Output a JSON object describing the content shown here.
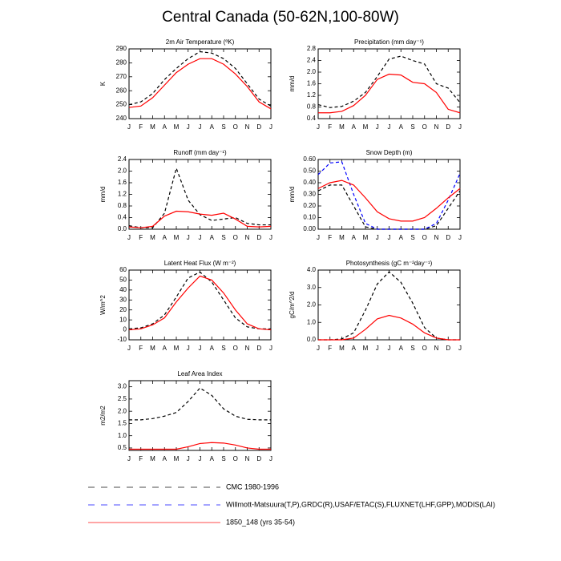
{
  "title": "Central Canada (50-62N,100-80W)",
  "legend": [
    {
      "name": "CMC 1980-1996",
      "color": "#000000",
      "dash": "8,8"
    },
    {
      "name": "Willmott-Matsuura(T,P),GRDC(R),USAF/ETAC(S),FLUXNET(LHF,GPP),MODIS(LAI)",
      "color": "#0000ff",
      "dash": "8,8"
    },
    {
      "name": "1850_148 (yrs 35-54)",
      "color": "#ff0000",
      "dash": "none"
    }
  ],
  "chart_data": [
    {
      "type": "line",
      "title": "2m Air Temperature (ºK)",
      "ylabel": "K",
      "categories": [
        "J",
        "F",
        "M",
        "A",
        "M",
        "J",
        "J",
        "A",
        "S",
        "O",
        "N",
        "D",
        "J"
      ],
      "ylim": [
        240,
        290
      ],
      "yticks": [
        240,
        250,
        260,
        270,
        280,
        290
      ],
      "series": [
        {
          "name": "CMC 1980-1996",
          "color": "#000000",
          "dash": "4,3",
          "values": [
            250,
            252,
            258,
            268,
            276,
            283,
            288,
            287,
            283,
            276,
            265,
            254,
            249
          ]
        },
        {
          "name": "1850_148 (yrs 35-54)",
          "color": "#ff0000",
          "dash": "none",
          "values": [
            248,
            249,
            255,
            264,
            273,
            279,
            283,
            283,
            279,
            272,
            263,
            252,
            247
          ]
        }
      ]
    },
    {
      "type": "line",
      "title": "Precipitation (mm day⁻¹)",
      "ylabel": "mm/d",
      "categories": [
        "J",
        "F",
        "M",
        "A",
        "M",
        "J",
        "J",
        "A",
        "S",
        "O",
        "N",
        "D",
        "J"
      ],
      "ylim": [
        0.4,
        2.8
      ],
      "yticks": [
        0.4,
        0.8,
        1.2,
        1.6,
        {
          "value": 2,
          "label": "2.0"
        },
        2.4,
        2.8
      ],
      "series": [
        {
          "name": "CMC 1980-1996",
          "color": "#000000",
          "dash": "4,3",
          "values": [
            0.88,
            0.78,
            0.82,
            1.0,
            1.3,
            1.85,
            2.45,
            2.55,
            2.4,
            2.28,
            1.6,
            1.45,
            0.95
          ]
        },
        {
          "name": "1850_148 (yrs 35-54)",
          "color": "#ff0000",
          "dash": "none",
          "values": [
            0.6,
            0.6,
            0.65,
            0.85,
            1.2,
            1.75,
            1.93,
            1.9,
            1.65,
            1.6,
            1.3,
            0.72,
            0.6
          ]
        }
      ]
    },
    {
      "type": "line",
      "title": "Runoff (mm day⁻¹)",
      "ylabel": "mm/d",
      "categories": [
        "J",
        "F",
        "M",
        "A",
        "M",
        "J",
        "J",
        "A",
        "S",
        "O",
        "N",
        "D",
        "J"
      ],
      "ylim": [
        0,
        2.4
      ],
      "yticks": [
        {
          "value": 0,
          "label": "0.0"
        },
        0.4,
        0.8,
        1.2,
        1.6,
        {
          "value": 2,
          "label": "2.0"
        },
        2.4
      ],
      "series": [
        {
          "name": "CMC 1980-1996",
          "color": "#000000",
          "dash": "4,3",
          "values": [
            0.12,
            0.05,
            0.05,
            0.55,
            2.1,
            1.0,
            0.5,
            0.3,
            0.35,
            0.4,
            0.2,
            0.15,
            0.15
          ]
        },
        {
          "name": "1850_148 (yrs 35-54)",
          "color": "#ff0000",
          "dash": "none",
          "values": [
            0.08,
            0.05,
            0.1,
            0.45,
            0.62,
            0.6,
            0.52,
            0.48,
            0.55,
            0.35,
            0.1,
            0.08,
            0.1
          ]
        }
      ]
    },
    {
      "type": "line",
      "title": "Snow Depth (m)",
      "ylabel": "mm/d",
      "categories": [
        "J",
        "F",
        "M",
        "A",
        "M",
        "J",
        "J",
        "A",
        "S",
        "O",
        "N",
        "D",
        "J"
      ],
      "ylim": [
        0,
        0.6
      ],
      "yticks": [
        {
          "value": 0,
          "label": "0.00"
        },
        {
          "value": 0.1,
          "label": "0.10"
        },
        {
          "value": 0.2,
          "label": "0.20"
        },
        {
          "value": 0.3,
          "label": "0.30"
        },
        {
          "value": 0.4,
          "label": "0.40"
        },
        {
          "value": 0.5,
          "label": "0.50"
        },
        {
          "value": 0.6,
          "label": "0.60"
        }
      ],
      "series": [
        {
          "name": "CMC 1980-1996",
          "color": "#000000",
          "dash": "4,3",
          "values": [
            0.33,
            0.38,
            0.38,
            0.2,
            0.02,
            0,
            0,
            0,
            0,
            0,
            0.03,
            0.18,
            0.33
          ]
        },
        {
          "name": "Willmott-Matsuura(T,P),GRDC(R),USAF/ETAC(S),FLUXNET(LHF,GPP),MODIS(LAI)",
          "color": "#0000ff",
          "dash": "4,3",
          "values": [
            0.47,
            0.57,
            0.58,
            0.3,
            0.05,
            0,
            0,
            0,
            0,
            0,
            0.05,
            0.25,
            0.48
          ]
        },
        {
          "name": "1850_148 (yrs 35-54)",
          "color": "#ff0000",
          "dash": "none",
          "values": [
            0.35,
            0.4,
            0.42,
            0.38,
            0.27,
            0.15,
            0.09,
            0.07,
            0.07,
            0.1,
            0.18,
            0.27,
            0.35
          ]
        }
      ]
    },
    {
      "type": "line",
      "title": "Latent Heat Flux (W m⁻²)",
      "ylabel": "W/m^2",
      "categories": [
        "J",
        "F",
        "M",
        "A",
        "M",
        "J",
        "J",
        "A",
        "S",
        "O",
        "N",
        "D",
        "J"
      ],
      "ylim": [
        -10,
        60
      ],
      "yticks": [
        -10,
        0,
        10,
        20,
        30,
        40,
        50,
        60
      ],
      "series": [
        {
          "name": "CMC 1980-1996",
          "color": "#000000",
          "dash": "4,3",
          "values": [
            1,
            2,
            6,
            15,
            33,
            52,
            58,
            48,
            30,
            12,
            3,
            1,
            1
          ]
        },
        {
          "name": "1850_148 (yrs 35-54)",
          "color": "#ff0000",
          "dash": "none",
          "values": [
            0,
            1,
            5,
            12,
            28,
            42,
            54,
            50,
            37,
            20,
            6,
            1,
            0
          ]
        }
      ]
    },
    {
      "type": "line",
      "title": "Photosynthesis (gC m⁻²day⁻¹)",
      "ylabel": "gC/m^2/d",
      "categories": [
        "J",
        "F",
        "M",
        "A",
        "M",
        "J",
        "J",
        "A",
        "S",
        "O",
        "N",
        "D",
        "J"
      ],
      "ylim": [
        0,
        4
      ],
      "yticks": [
        {
          "value": 0,
          "label": "0.0"
        },
        {
          "value": 1,
          "label": "1.0"
        },
        {
          "value": 2,
          "label": "2.0"
        },
        {
          "value": 3,
          "label": "3.0"
        },
        {
          "value": 4,
          "label": "4.0"
        }
      ],
      "series": [
        {
          "name": "CMC 1980-1996",
          "color": "#000000",
          "dash": "4,3",
          "values": [
            0,
            0,
            0.05,
            0.4,
            1.7,
            3.2,
            3.9,
            3.3,
            2.1,
            0.7,
            0.1,
            0,
            0
          ]
        },
        {
          "name": "1850_148 (yrs 35-54)",
          "color": "#ff0000",
          "dash": "none",
          "values": [
            0,
            0,
            0,
            0.1,
            0.6,
            1.2,
            1.4,
            1.25,
            0.9,
            0.4,
            0.1,
            0,
            0
          ]
        }
      ]
    },
    {
      "type": "line",
      "title": "Leaf Area Index",
      "ylabel": "m2/m2",
      "categories": [
        "J",
        "F",
        "M",
        "A",
        "M",
        "J",
        "J",
        "A",
        "S",
        "O",
        "N",
        "D",
        "J"
      ],
      "ylim": [
        0.4,
        3.25
      ],
      "yticks": [
        0.5,
        {
          "value": 1,
          "label": "1.0"
        },
        1.5,
        {
          "value": 2,
          "label": "2.0"
        },
        2.5,
        {
          "value": 3,
          "label": "3.0"
        }
      ],
      "series": [
        {
          "name": "CMC 1980-1996",
          "color": "#000000",
          "dash": "4,3",
          "values": [
            1.65,
            1.65,
            1.7,
            1.8,
            1.95,
            2.4,
            2.95,
            2.65,
            2.1,
            1.8,
            1.67,
            1.65,
            1.65
          ]
        },
        {
          "name": "1850_148 (yrs 35-54)",
          "color": "#ff0000",
          "dash": "none",
          "values": [
            0.45,
            0.45,
            0.45,
            0.45,
            0.45,
            0.55,
            0.68,
            0.72,
            0.7,
            0.62,
            0.5,
            0.45,
            0.45
          ]
        }
      ]
    }
  ]
}
